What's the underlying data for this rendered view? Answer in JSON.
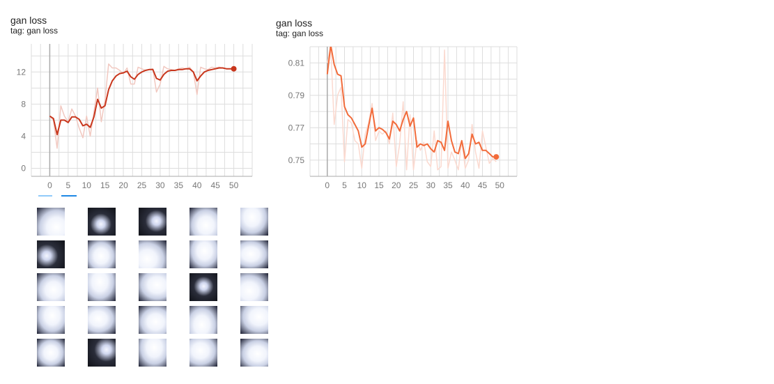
{
  "cards": [
    {
      "title": "gan loss",
      "tag": "tag: gan loss"
    },
    {
      "title": "gan loss",
      "tag": "tag: gan loss"
    }
  ],
  "colors": {
    "chart1_line": "#c8361c",
    "chart1_raw": "#f1c8c0",
    "chart2_line": "#f26b3a",
    "chart2_raw": "#fbd9cf",
    "grid": "#dddddd",
    "axis": "#aaaaaa",
    "toggle_off": "#90caf9",
    "toggle_on": "#1e88e5"
  },
  "icons": {
    "toggle": "expand-toggle-icon"
  },
  "chart_data": [
    {
      "type": "line",
      "title": "gan loss",
      "subtitle": "tag: gan loss",
      "xlim": [
        -5,
        55
      ],
      "ylim": [
        -1,
        15.5
      ],
      "x_ticks": [
        0,
        5,
        10,
        15,
        20,
        25,
        30,
        35,
        40,
        45,
        50
      ],
      "y_ticks": [
        0,
        4,
        8,
        12
      ],
      "grid": true,
      "series": [
        {
          "role": "raw",
          "x": [
            0,
            1,
            2,
            3,
            4,
            5,
            6,
            7,
            8,
            9,
            10,
            11,
            12,
            13,
            14,
            15,
            16,
            17,
            18,
            19,
            20,
            21,
            22,
            23,
            24,
            25,
            26,
            27,
            28,
            29,
            30,
            31,
            32,
            33,
            34,
            35,
            36,
            37,
            38,
            39,
            40,
            41,
            42,
            43,
            44,
            45,
            46,
            47,
            48,
            49,
            50
          ],
          "y": [
            6.5,
            6.0,
            2.5,
            7.8,
            6.5,
            5.8,
            7.4,
            6.5,
            5.0,
            3.8,
            6.5,
            4.0,
            7.0,
            10.0,
            5.8,
            8.5,
            13.0,
            12.5,
            12.5,
            12.2,
            11.8,
            12.5,
            10.5,
            10.5,
            12.6,
            12.4,
            12.2,
            12.3,
            12.4,
            9.5,
            10.5,
            12.7,
            12.4,
            12.3,
            12.2,
            12.4,
            12.5,
            12.4,
            12.6,
            12.0,
            9.2,
            12.6,
            12.4,
            12.3,
            12.6,
            12.5,
            12.6,
            12.5,
            12.4,
            12.4,
            12.3
          ]
        },
        {
          "role": "smoothed",
          "x": [
            0,
            1,
            2,
            3,
            4,
            5,
            6,
            7,
            8,
            9,
            10,
            11,
            12,
            13,
            14,
            15,
            16,
            17,
            18,
            19,
            20,
            21,
            22,
            23,
            24,
            25,
            26,
            27,
            28,
            29,
            30,
            31,
            32,
            33,
            34,
            35,
            36,
            37,
            38,
            39,
            40,
            41,
            42,
            43,
            44,
            45,
            46,
            47,
            48,
            49,
            50
          ],
          "y": [
            6.5,
            6.2,
            4.2,
            6.0,
            6.0,
            5.7,
            6.4,
            6.4,
            6.1,
            5.3,
            5.5,
            5.1,
            6.4,
            8.6,
            7.5,
            7.8,
            9.8,
            10.9,
            11.5,
            11.8,
            11.9,
            12.1,
            11.4,
            11.1,
            11.7,
            12.0,
            12.2,
            12.3,
            12.3,
            11.2,
            11.0,
            11.7,
            12.1,
            12.2,
            12.2,
            12.3,
            12.3,
            12.4,
            12.4,
            12.0,
            10.9,
            11.5,
            12.0,
            12.2,
            12.3,
            12.4,
            12.5,
            12.5,
            12.4,
            12.4,
            12.4
          ]
        }
      ]
    },
    {
      "type": "line",
      "title": "gan loss",
      "subtitle": "tag: gan loss",
      "xlim": [
        -5,
        55
      ],
      "ylim": [
        0.74,
        0.82
      ],
      "x_ticks": [
        0,
        5,
        10,
        15,
        20,
        25,
        30,
        35,
        40,
        45,
        50
      ],
      "y_ticks": [
        "0.75",
        "0.77",
        "0.79",
        "0.81"
      ],
      "grid": true,
      "series": [
        {
          "role": "raw",
          "x": [
            0,
            1,
            2,
            3,
            4,
            5,
            6,
            7,
            8,
            9,
            10,
            11,
            12,
            13,
            14,
            15,
            16,
            17,
            18,
            19,
            20,
            21,
            22,
            23,
            24,
            25,
            26,
            27,
            28,
            29,
            30,
            31,
            32,
            33,
            34,
            35,
            36,
            37,
            38,
            39,
            40,
            41,
            42,
            43,
            44,
            45,
            46,
            47,
            48,
            49
          ],
          "y": [
            0.81,
            0.82,
            0.772,
            0.79,
            0.795,
            0.749,
            0.775,
            0.773,
            0.762,
            0.76,
            0.745,
            0.766,
            0.773,
            0.785,
            0.762,
            0.768,
            0.766,
            0.768,
            0.76,
            0.779,
            0.746,
            0.76,
            0.786,
            0.744,
            0.778,
            0.744,
            0.762,
            0.756,
            0.761,
            0.749,
            0.746,
            0.768,
            0.744,
            0.746,
            0.818,
            0.745,
            0.755,
            0.75,
            0.744,
            0.762,
            0.745,
            0.75,
            0.772,
            0.755,
            0.745,
            0.768,
            0.758,
            0.748,
            0.751,
            0.749
          ]
        },
        {
          "role": "smoothed",
          "x": [
            0,
            1,
            2,
            3,
            4,
            5,
            6,
            7,
            8,
            9,
            10,
            11,
            12,
            13,
            14,
            15,
            16,
            17,
            18,
            19,
            20,
            21,
            22,
            23,
            24,
            25,
            26,
            27,
            28,
            29,
            30,
            31,
            32,
            33,
            34,
            35,
            36,
            37,
            38,
            39,
            40,
            41,
            42,
            43,
            44,
            45,
            46,
            47,
            48,
            49
          ],
          "y": [
            0.803,
            0.821,
            0.809,
            0.803,
            0.802,
            0.783,
            0.778,
            0.776,
            0.772,
            0.768,
            0.758,
            0.76,
            0.771,
            0.782,
            0.768,
            0.77,
            0.769,
            0.767,
            0.763,
            0.774,
            0.772,
            0.768,
            0.775,
            0.78,
            0.771,
            0.776,
            0.758,
            0.76,
            0.759,
            0.76,
            0.757,
            0.755,
            0.762,
            0.761,
            0.756,
            0.774,
            0.762,
            0.755,
            0.754,
            0.762,
            0.751,
            0.754,
            0.766,
            0.76,
            0.761,
            0.756,
            0.756,
            0.754,
            0.752,
            0.752
          ]
        }
      ]
    }
  ]
}
